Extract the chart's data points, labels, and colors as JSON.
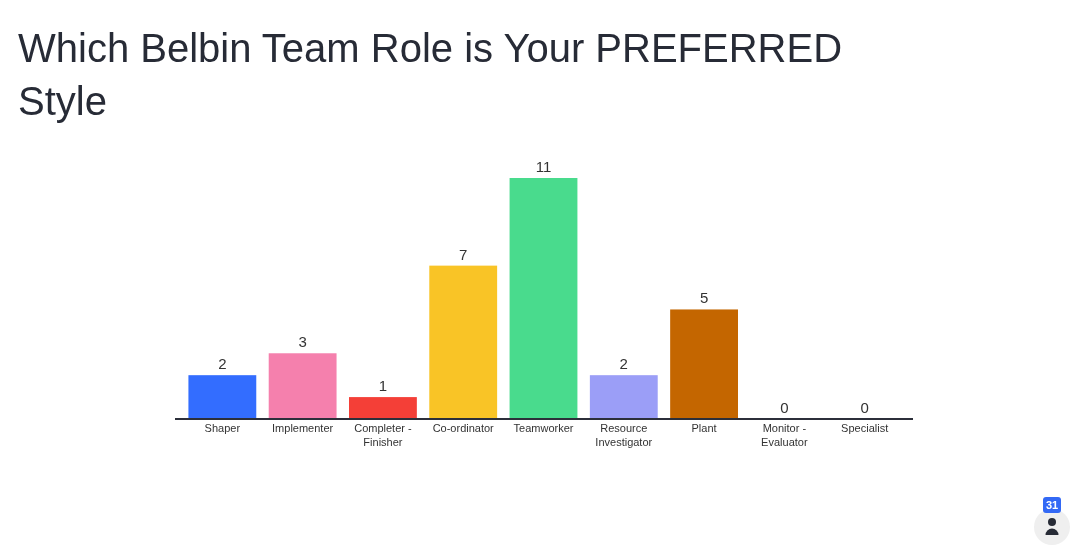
{
  "chart_data": {
    "type": "bar",
    "title": "Which Belbin Team Role is Your PREFERRED Style",
    "categories": [
      "Shaper",
      "Implementer",
      "Completer - Finisher",
      "Co-ordinator",
      "Teamworker",
      "Resource Investigator",
      "Plant",
      "Monitor - Evaluator",
      "Specialist"
    ],
    "values": [
      2,
      3,
      1,
      7,
      11,
      2,
      5,
      0,
      0
    ],
    "colors": [
      "#336dff",
      "#f580ad",
      "#f43f37",
      "#f9c426",
      "#49db8d",
      "#9b9ef7",
      "#c46600",
      "#2a2d5c",
      "#7ad4f0"
    ],
    "data_labels": true,
    "annotations": [
      "31"
    ]
  }
}
